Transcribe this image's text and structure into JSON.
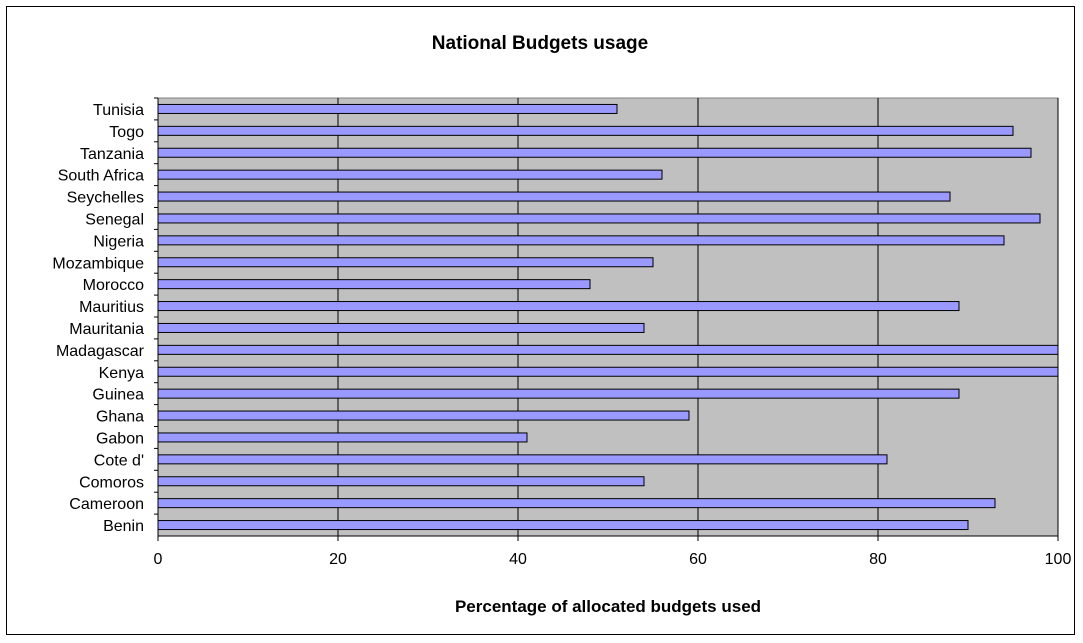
{
  "chart_data": {
    "type": "bar",
    "orientation": "horizontal",
    "title": "National Budgets usage",
    "xlabel": "Percentage of allocated budgets used",
    "ylabel": "",
    "xlim": [
      0,
      100
    ],
    "xticks": [
      "0",
      "20",
      "40",
      "60",
      "80",
      "100"
    ],
    "grid": true,
    "legend": "none",
    "colors": {
      "bar_fill": "#9999ff",
      "plot_bg": "#c0c0c0",
      "gridline": "#000000"
    },
    "categories": [
      "Tunisia",
      "Togo",
      "Tanzania",
      "South Africa",
      "Seychelles",
      "Senegal",
      "Nigeria",
      "Mozambique",
      "Morocco",
      "Mauritius",
      "Mauritania",
      "Madagascar",
      "Kenya",
      "Guinea",
      "Ghana",
      "Gabon",
      "Cote d'",
      "Comoros",
      "Cameroon",
      "Benin"
    ],
    "values": [
      51,
      95,
      97,
      56,
      88,
      98,
      94,
      55,
      48,
      89,
      54,
      100,
      100,
      89,
      59,
      41,
      81,
      54,
      93,
      90
    ]
  }
}
